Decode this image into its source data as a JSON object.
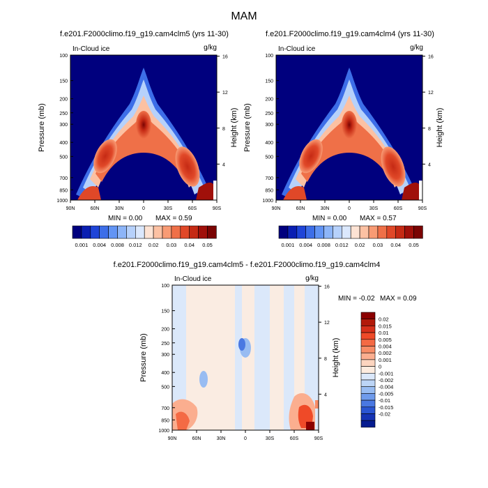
{
  "chart_data": {
    "title": "MAM",
    "x_tick_labels": [
      "90N",
      "60N",
      "30N",
      "0",
      "30S",
      "60S",
      "90S"
    ],
    "x_values": [
      90,
      60,
      30,
      0,
      -30,
      -60,
      -90
    ],
    "pressure_ticks": [
      100,
      150,
      200,
      250,
      300,
      400,
      500,
      700,
      850,
      1000
    ],
    "height_ticks": [
      16,
      12,
      8,
      4
    ],
    "ylabel": "Pressure (mb)",
    "ylabel_right": "Height (km)",
    "panels": [
      {
        "type": "heatmap",
        "title": "f.e201.F2000climo.f19_g19.cam4clm5 (yrs 11-30)",
        "left_label": "In-Cloud ice",
        "right_label": "g/kg",
        "min_label": "MIN =   0.00",
        "max_label": "MAX =   0.59",
        "min": 0.0,
        "max": 0.59,
        "levels": [
          "0.001",
          "0.004",
          "0.008",
          "0.012",
          "0.02",
          "0.03",
          "0.04",
          "0.05"
        ],
        "colors": [
          "#00007e",
          "#0a1fb2",
          "#1f45d8",
          "#3d6ee8",
          "#6294f4",
          "#8db5f8",
          "#b6d1fb",
          "#dbe8fd",
          "#fde3d4",
          "#fcc1a3",
          "#f89b74",
          "#ef7048",
          "#e04828",
          "#c52a14",
          "#a0100a",
          "#7a0403"
        ]
      },
      {
        "type": "heatmap",
        "title": "f.e201.F2000climo.f19_g19.cam4clm4 (yrs 11-30)",
        "left_label": "In-Cloud ice",
        "right_label": "g/kg",
        "min_label": "MIN =   0.00",
        "max_label": "MAX =   0.57",
        "min": 0.0,
        "max": 0.57,
        "levels": [
          "0.001",
          "0.004",
          "0.008",
          "0.012",
          "0.02",
          "0.03",
          "0.04",
          "0.05"
        ],
        "colors": [
          "#00007e",
          "#0a1fb2",
          "#1f45d8",
          "#3d6ee8",
          "#6294f4",
          "#8db5f8",
          "#b6d1fb",
          "#dbe8fd",
          "#fde3d4",
          "#fcc1a3",
          "#f89b74",
          "#ef7048",
          "#e04828",
          "#c52a14",
          "#a0100a",
          "#7a0403"
        ]
      },
      {
        "type": "heatmap",
        "title": "f.e201.F2000climo.f19_g19.cam4clm5 - f.e201.F2000climo.f19_g19.cam4clm4",
        "left_label": "In-Cloud ice",
        "right_label": "g/kg",
        "min_label": "MIN =  -0.02",
        "max_label": "MAX =   0.09",
        "min": -0.02,
        "max": 0.09,
        "levels": [
          "0.02",
          "0.015",
          "0.01",
          "0.005",
          "0.004",
          "0.002",
          "0.001",
          "0",
          "-0.001",
          "-0.002",
          "-0.004",
          "-0.005",
          "-0.01",
          "-0.015",
          "-0.02"
        ],
        "colors": [
          "#8b0000",
          "#b21a0a",
          "#d6301a",
          "#ef4a28",
          "#f46a44",
          "#f88c66",
          "#fbae8f",
          "#fdd5bf",
          "#fdecdf",
          "#dbe8fa",
          "#bcd5f6",
          "#98bcf2",
          "#6f9bec",
          "#4a78e2",
          "#2a55d2",
          "#1533b4",
          "#061c90"
        ]
      }
    ]
  }
}
